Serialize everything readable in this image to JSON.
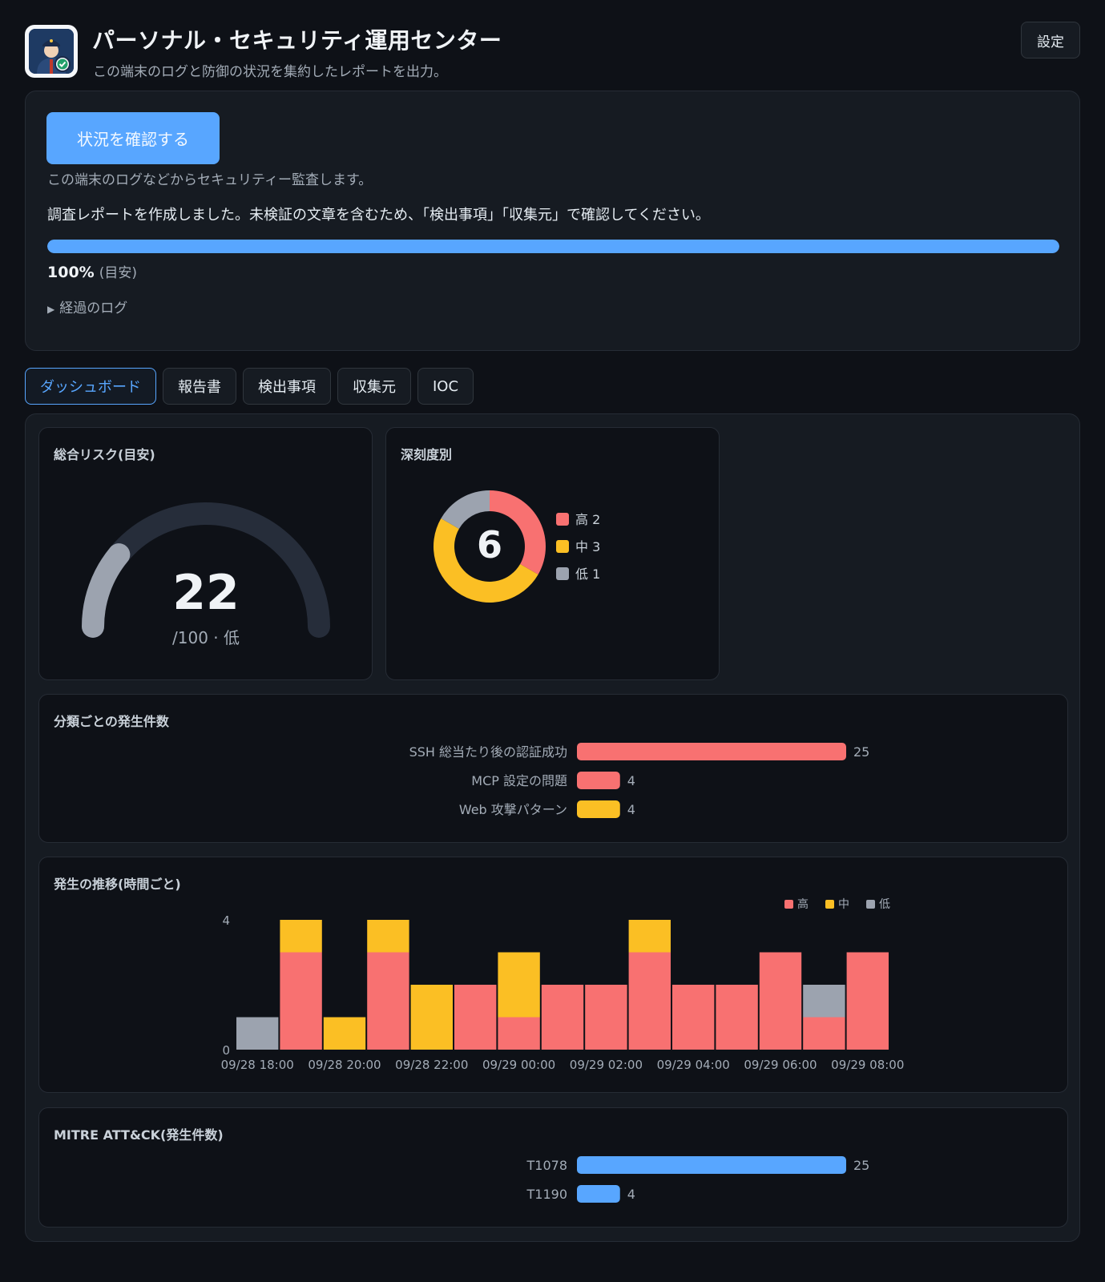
{
  "header": {
    "title": "パーソナル・セキュリティ運用センター",
    "subtitle": "この端末のログと防御の状況を集約したレポートを出力。",
    "settings_label": "設定",
    "app_icon": "security-officer-icon"
  },
  "status": {
    "check_button_label": "状況を確認する",
    "check_description": "この端末のログなどからセキュリティー監査します。",
    "report_message": "調査レポートを作成しました。未検証の文章を含むため、「検出事項」「収集元」で確認してください。",
    "progress_percent": 100,
    "progress_value_label": "100%",
    "progress_hint": "(目安)",
    "log_toggle_label": "経過のログ"
  },
  "tabs": [
    {
      "label": "ダッシュボード",
      "active": true
    },
    {
      "label": "報告書",
      "active": false
    },
    {
      "label": "検出事項",
      "active": false
    },
    {
      "label": "収集元",
      "active": false
    },
    {
      "label": "IOC",
      "active": false
    }
  ],
  "colors": {
    "high": "#f87171",
    "medium": "#fbbf24",
    "low": "#9ca3af",
    "accent": "#58a6ff",
    "gauge_track": "#262d3a"
  },
  "risk": {
    "title": "総合リスク(目安)",
    "value_label": "22",
    "value": 22,
    "max": 100,
    "suffix": "/100 · 低"
  },
  "severity": {
    "title": "深刻度別",
    "total_label": "6"
  },
  "categories": {
    "title": "分類ごとの発生件数"
  },
  "trend": {
    "title": "発生の推移(時間ごと)"
  },
  "mitre": {
    "title": "MITRE ATT&CK(発生件数)"
  },
  "chart_data": [
    {
      "type": "pie",
      "title": "深刻度別",
      "categories": [
        "高",
        "中",
        "低"
      ],
      "values": [
        2,
        3,
        1
      ],
      "legend": [
        "高 2",
        "中 3",
        "低 1"
      ],
      "colors": [
        "#f87171",
        "#fbbf24",
        "#9ca3af"
      ],
      "legend_position": "right"
    },
    {
      "type": "bar",
      "orientation": "horizontal",
      "title": "分類ごとの発生件数",
      "categories": [
        "SSH 総当たり後の認証成功",
        "MCP 設定の問題",
        "Web 攻撃パターン"
      ],
      "values": [
        25,
        4,
        4
      ],
      "value_labels": [
        "25",
        "4",
        "4"
      ],
      "colors": [
        "#f87171",
        "#f87171",
        "#fbbf24"
      ]
    },
    {
      "type": "bar",
      "stacked": true,
      "title": "発生の推移(時間ごと)",
      "x": [
        "09/28 18:00",
        "09/28 19:00",
        "09/28 20:00",
        "09/28 21:00",
        "09/28 22:00",
        "09/28 23:00",
        "09/29 00:00",
        "09/29 01:00",
        "09/29 02:00",
        "09/29 03:00",
        "09/29 04:00",
        "09/29 05:00",
        "09/29 06:00",
        "09/29 07:00",
        "09/29 08:00"
      ],
      "tick_labels": [
        "09/28 18:00",
        "09/28 20:00",
        "09/28 22:00",
        "09/29 00:00",
        "09/29 02:00",
        "09/29 04:00",
        "09/29 06:00",
        "09/29 08:00"
      ],
      "y_ticks": [
        "0",
        "4"
      ],
      "ylim": [
        0,
        4
      ],
      "legend_position": "top-right",
      "series": [
        {
          "name": "高",
          "color": "#f87171",
          "values": [
            0,
            3,
            0,
            3,
            0,
            2,
            1,
            2,
            2,
            3,
            2,
            2,
            3,
            1,
            3
          ]
        },
        {
          "name": "中",
          "color": "#fbbf24",
          "values": [
            0,
            1,
            1,
            1,
            2,
            0,
            2,
            0,
            0,
            1,
            0,
            0,
            0,
            0,
            0
          ]
        },
        {
          "name": "低",
          "color": "#9ca3af",
          "values": [
            1,
            0,
            0,
            0,
            0,
            0,
            0,
            0,
            0,
            0,
            0,
            0,
            0,
            1,
            0
          ]
        }
      ]
    },
    {
      "type": "bar",
      "orientation": "horizontal",
      "title": "MITRE ATT&CK(発生件数)",
      "categories": [
        "T1078",
        "T1190"
      ],
      "values": [
        25,
        4
      ],
      "value_labels": [
        "25",
        "4"
      ],
      "colors": [
        "#58a6ff",
        "#58a6ff"
      ]
    }
  ]
}
